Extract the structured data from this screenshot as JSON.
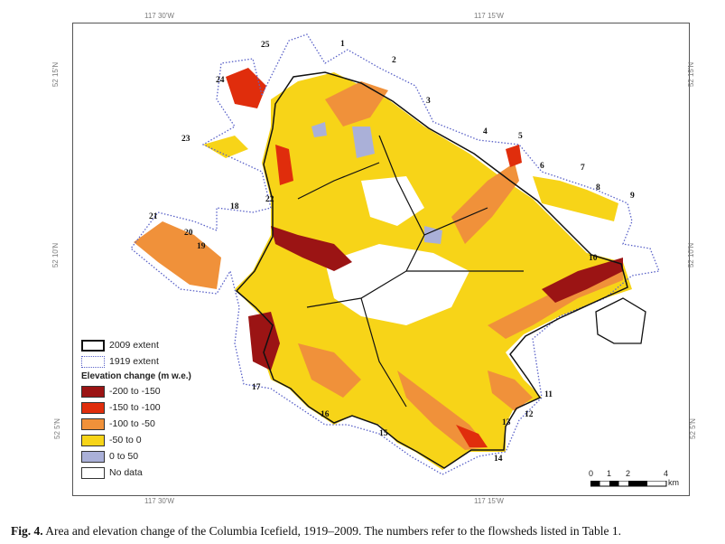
{
  "coordinates": {
    "top": [
      "117 30'W",
      "117 15'W"
    ],
    "bottom": [
      "117 30'W",
      "117 15'W"
    ],
    "left": [
      "52 15'N",
      "52 10'N",
      "52 5'N"
    ],
    "right": [
      "52 15'N",
      "52 10'N",
      "52 5'N"
    ]
  },
  "legend": {
    "extent_2009": "2009 extent",
    "extent_1919": "1919 extent",
    "title": "Elevation change (m w.e.)",
    "classes": [
      {
        "label": "-200 to -150",
        "color": "#9b1414"
      },
      {
        "label": "-150 to -100",
        "color": "#e02d0c"
      },
      {
        "label": "-100 to -50",
        "color": "#f0913a"
      },
      {
        "label": "-50 to 0",
        "color": "#f7d418"
      },
      {
        "label": "0 to 50",
        "color": "#aab0d8"
      },
      {
        "label": "No data",
        "color": "#ffffff"
      }
    ],
    "extent_2009_color": "#111111",
    "extent_1919_color": "#5a62c8"
  },
  "scale_bar": {
    "ticks": [
      "0",
      "1",
      "2",
      "4"
    ],
    "unit": "km"
  },
  "flowsheds": [
    "1",
    "2",
    "3",
    "4",
    "5",
    "6",
    "7",
    "8",
    "9",
    "10",
    "11",
    "12",
    "13",
    "14",
    "15",
    "16",
    "17",
    "18",
    "19",
    "20",
    "21",
    "22",
    "23",
    "24",
    "25"
  ],
  "caption": {
    "figure_label": "Fig. 4.",
    "text": " Area and elevation change of the Columbia Icefield, 1919–2009. The numbers refer to the flowsheds listed in Table 1."
  }
}
